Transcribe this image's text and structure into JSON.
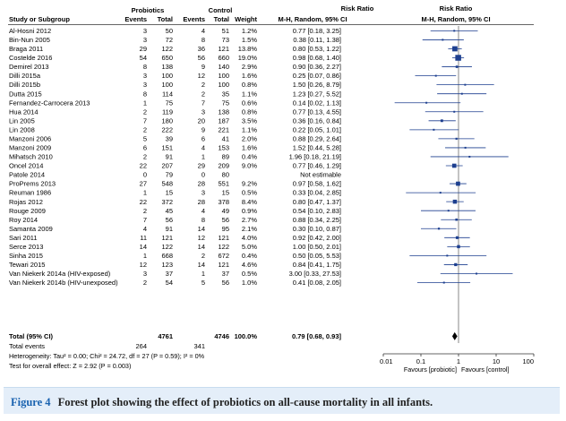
{
  "headers": {
    "group1": "Probiotics",
    "group2": "Control",
    "effect_col": "Risk Ratio",
    "plot_col": "Risk Ratio",
    "study": "Study or Subgroup",
    "events": "Events",
    "total": "Total",
    "weight": "Weight",
    "method": "M-H, Random, 95% CI"
  },
  "studies": [
    {
      "name": "Al-Hosni 2012",
      "e1": "3",
      "t1": "50",
      "e2": "4",
      "t2": "51",
      "w": "1.2%",
      "ci": "0.77 [0.18, 3.25]",
      "rr": 0.77,
      "lo": 0.18,
      "hi": 3.25
    },
    {
      "name": "Bin-Nun 2005",
      "e1": "3",
      "t1": "72",
      "e2": "8",
      "t2": "73",
      "w": "1.5%",
      "ci": "0.38 [0.11, 1.38]",
      "rr": 0.38,
      "lo": 0.11,
      "hi": 1.38
    },
    {
      "name": "Braga 2011",
      "e1": "29",
      "t1": "122",
      "e2": "36",
      "t2": "121",
      "w": "13.8%",
      "ci": "0.80 [0.53, 1.22]",
      "rr": 0.8,
      "lo": 0.53,
      "hi": 1.22
    },
    {
      "name": "Costelde 2016",
      "e1": "54",
      "t1": "650",
      "e2": "56",
      "t2": "660",
      "w": "19.0%",
      "ci": "0.98 [0.68, 1.40]",
      "rr": 0.98,
      "lo": 0.68,
      "hi": 1.4
    },
    {
      "name": "Demirel 2013",
      "e1": "8",
      "t1": "138",
      "e2": "9",
      "t2": "140",
      "w": "2.9%",
      "ci": "0.90 [0.36, 2.27]",
      "rr": 0.9,
      "lo": 0.36,
      "hi": 2.27
    },
    {
      "name": "Dilli 2015a",
      "e1": "3",
      "t1": "100",
      "e2": "12",
      "t2": "100",
      "w": "1.6%",
      "ci": "0.25 [0.07, 0.86]",
      "rr": 0.25,
      "lo": 0.07,
      "hi": 0.86
    },
    {
      "name": "Dilli 2015b",
      "e1": "3",
      "t1": "100",
      "e2": "2",
      "t2": "100",
      "w": "0.8%",
      "ci": "1.50 [0.26, 8.79]",
      "rr": 1.5,
      "lo": 0.26,
      "hi": 8.79
    },
    {
      "name": "Dutta 2015",
      "e1": "8",
      "t1": "114",
      "e2": "2",
      "t2": "35",
      "w": "1.1%",
      "ci": "1.23 [0.27, 5.52]",
      "rr": 1.23,
      "lo": 0.27,
      "hi": 5.52
    },
    {
      "name": "Fernandez-Carrocera 2013",
      "e1": "1",
      "t1": "75",
      "e2": "7",
      "t2": "75",
      "w": "0.6%",
      "ci": "0.14 [0.02, 1.13]",
      "rr": 0.14,
      "lo": 0.02,
      "hi": 1.13
    },
    {
      "name": "Hua 2014",
      "e1": "2",
      "t1": "119",
      "e2": "3",
      "t2": "138",
      "w": "0.8%",
      "ci": "0.77 [0.13, 4.55]",
      "rr": 0.77,
      "lo": 0.13,
      "hi": 4.55
    },
    {
      "name": "Lin 2005",
      "e1": "7",
      "t1": "180",
      "e2": "20",
      "t2": "187",
      "w": "3.5%",
      "ci": "0.36 [0.16, 0.84]",
      "rr": 0.36,
      "lo": 0.16,
      "hi": 0.84
    },
    {
      "name": "Lin 2008",
      "e1": "2",
      "t1": "222",
      "e2": "9",
      "t2": "221",
      "w": "1.1%",
      "ci": "0.22 [0.05, 1.01]",
      "rr": 0.22,
      "lo": 0.05,
      "hi": 1.01
    },
    {
      "name": "Manzoni 2006",
      "e1": "5",
      "t1": "39",
      "e2": "6",
      "t2": "41",
      "w": "2.0%",
      "ci": "0.88 [0.29, 2.64]",
      "rr": 0.88,
      "lo": 0.29,
      "hi": 2.64
    },
    {
      "name": "Manzoni 2009",
      "e1": "6",
      "t1": "151",
      "e2": "4",
      "t2": "153",
      "w": "1.6%",
      "ci": "1.52 [0.44, 5.28]",
      "rr": 1.52,
      "lo": 0.44,
      "hi": 5.28
    },
    {
      "name": "Mihatsch 2010",
      "e1": "2",
      "t1": "91",
      "e2": "1",
      "t2": "89",
      "w": "0.4%",
      "ci": "1.96 [0.18, 21.19]",
      "rr": 1.96,
      "lo": 0.18,
      "hi": 21.19
    },
    {
      "name": "Oncel 2014",
      "e1": "22",
      "t1": "207",
      "e2": "29",
      "t2": "209",
      "w": "9.0%",
      "ci": "0.77 [0.46, 1.29]",
      "rr": 0.77,
      "lo": 0.46,
      "hi": 1.29
    },
    {
      "name": "Patole 2014",
      "e1": "0",
      "t1": "79",
      "e2": "0",
      "t2": "80",
      "w": "",
      "ci": "Not estimable",
      "rr": null,
      "lo": null,
      "hi": null
    },
    {
      "name": "ProPrems 2013",
      "e1": "27",
      "t1": "548",
      "e2": "28",
      "t2": "551",
      "w": "9.2%",
      "ci": "0.97 [0.58, 1.62]",
      "rr": 0.97,
      "lo": 0.58,
      "hi": 1.62
    },
    {
      "name": "Reuman 1986",
      "e1": "1",
      "t1": "15",
      "e2": "3",
      "t2": "15",
      "w": "0.5%",
      "ci": "0.33 [0.04, 2.85]",
      "rr": 0.33,
      "lo": 0.04,
      "hi": 2.85
    },
    {
      "name": "Rojas 2012",
      "e1": "22",
      "t1": "372",
      "e2": "28",
      "t2": "378",
      "w": "8.4%",
      "ci": "0.80 [0.47, 1.37]",
      "rr": 0.8,
      "lo": 0.47,
      "hi": 1.37
    },
    {
      "name": "Rouge 2009",
      "e1": "2",
      "t1": "45",
      "e2": "4",
      "t2": "49",
      "w": "0.9%",
      "ci": "0.54 [0.10, 2.83]",
      "rr": 0.54,
      "lo": 0.1,
      "hi": 2.83
    },
    {
      "name": "Roy 2014",
      "e1": "7",
      "t1": "56",
      "e2": "8",
      "t2": "56",
      "w": "2.7%",
      "ci": "0.88 [0.34, 2.25]",
      "rr": 0.88,
      "lo": 0.34,
      "hi": 2.25
    },
    {
      "name": "Samanta 2009",
      "e1": "4",
      "t1": "91",
      "e2": "14",
      "t2": "95",
      "w": "2.1%",
      "ci": "0.30 [0.10, 0.87]",
      "rr": 0.3,
      "lo": 0.1,
      "hi": 0.87
    },
    {
      "name": "Sari 2011",
      "e1": "11",
      "t1": "121",
      "e2": "12",
      "t2": "121",
      "w": "4.0%",
      "ci": "0.92 [0.42, 2.00]",
      "rr": 0.92,
      "lo": 0.42,
      "hi": 2.0
    },
    {
      "name": "Serce 2013",
      "e1": "14",
      "t1": "122",
      "e2": "14",
      "t2": "122",
      "w": "5.0%",
      "ci": "1.00 [0.50, 2.01]",
      "rr": 1.0,
      "lo": 0.5,
      "hi": 2.01
    },
    {
      "name": "Sinha 2015",
      "e1": "1",
      "t1": "668",
      "e2": "2",
      "t2": "672",
      "w": "0.4%",
      "ci": "0.50 [0.05, 5.53]",
      "rr": 0.5,
      "lo": 0.05,
      "hi": 5.53
    },
    {
      "name": "Tewari 2015",
      "e1": "12",
      "t1": "123",
      "e2": "14",
      "t2": "121",
      "w": "4.6%",
      "ci": "0.84 [0.41, 1.75]",
      "rr": 0.84,
      "lo": 0.41,
      "hi": 1.75
    },
    {
      "name": "Van Niekerk 2014a (HIV-exposed)",
      "e1": "3",
      "t1": "37",
      "e2": "1",
      "t2": "37",
      "w": "0.5%",
      "ci": "3.00 [0.33, 27.53]",
      "rr": 3.0,
      "lo": 0.33,
      "hi": 27.53
    },
    {
      "name": "Van Niekerk 2014b (HIV-unexposed)",
      "e1": "2",
      "t1": "54",
      "e2": "5",
      "t2": "56",
      "w": "1.0%",
      "ci": "0.41 [0.08, 2.05]",
      "rr": 0.41,
      "lo": 0.08,
      "hi": 2.05
    }
  ],
  "total": {
    "label": "Total (95% CI)",
    "t1": "4761",
    "t2": "4746",
    "w": "100.0%",
    "ci": "0.79 [0.68, 0.93]",
    "rr": 0.79,
    "lo": 0.68,
    "hi": 0.93
  },
  "total_events": {
    "label": "Total events",
    "e1": "264",
    "e2": "341"
  },
  "heterogeneity": "Heterogeneity: Tau² = 0.00; Chi² = 24.72, df = 27 (P = 0.59); I² = 0%",
  "overall_effect": "Test for overall effect: Z = 2.92 (P = 0.003)",
  "axis": {
    "scale": "log",
    "range": [
      0.01,
      100
    ],
    "ticks": [
      {
        "value": 0.01,
        "label": "0.01"
      },
      {
        "value": 0.1,
        "label": "0.1"
      },
      {
        "value": 1,
        "label": "1"
      },
      {
        "value": 10,
        "label": "10"
      },
      {
        "value": 100,
        "label": "100"
      }
    ],
    "favours_left": "Favours [probiotic]",
    "favours_right": "Favours [control]"
  },
  "colors": {
    "ci_line": "#1d3f8f",
    "square": "#1d3f8f",
    "diamond": "#000000",
    "caption_bg": "#e4eef9",
    "figure_label": "#1a63b0"
  },
  "caption": {
    "label": "Figure 4",
    "text": "Forest plot showing the effect of probiotics on all-cause mortality in all infants."
  }
}
